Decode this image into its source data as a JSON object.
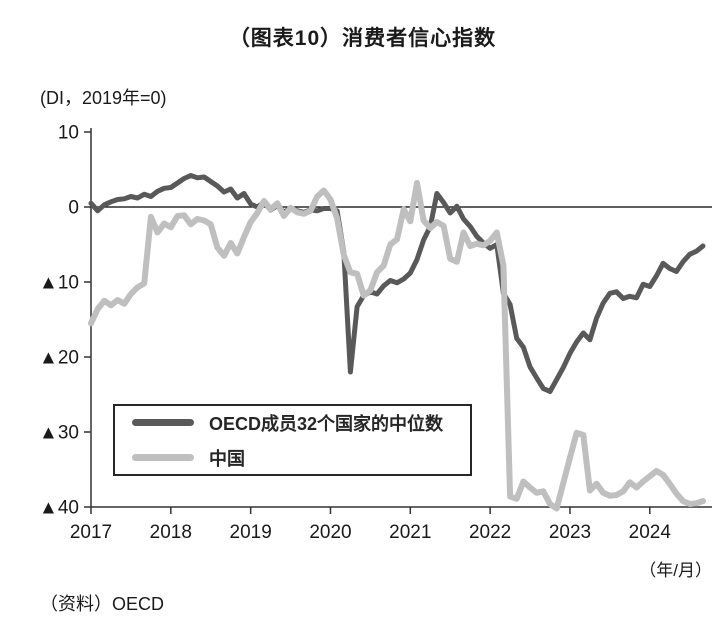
{
  "title": "（图表10）消费者信心指数",
  "unit_note": "(DI，2019年=0)",
  "x_unit_label": "（年/月）",
  "source": "（资料）OECD",
  "colors": {
    "oecd_line": "#595959",
    "china_line": "#bfbfbf",
    "axis": "#333333",
    "zero_line": "#000000",
    "text": "#1a1a1a",
    "legend_border": "#262626",
    "background": "#ffffff"
  },
  "chart_data": {
    "type": "line",
    "title": "（图表10）消费者信心指数",
    "unit_note": "(DI，2019年=0)",
    "xlabel": "（年/月）",
    "x_start": "2017-01",
    "x_end": "2024-09",
    "x_frequency": "monthly",
    "x_tick_labels": [
      "2017",
      "2018",
      "2019",
      "2020",
      "2021",
      "2022",
      "2023",
      "2024"
    ],
    "y_ticks": [
      {
        "value": 10,
        "label": "10"
      },
      {
        "value": 0,
        "label": "0"
      },
      {
        "value": -10,
        "label": "▲10"
      },
      {
        "value": -20,
        "label": "▲20"
      },
      {
        "value": -30,
        "label": "▲30"
      },
      {
        "value": -40,
        "label": "▲40"
      }
    ],
    "ylim": [
      -40,
      10
    ],
    "zero_line": true,
    "grid": false,
    "legend_position": "inside-bottom-left",
    "series": [
      {
        "name": "OECD成员32个国家的中位数",
        "color": "#595959",
        "stroke_width": 5,
        "values": [
          0.5,
          -0.5,
          0.3,
          0.7,
          1.0,
          1.1,
          1.4,
          1.2,
          1.7,
          1.4,
          2.1,
          2.5,
          2.6,
          3.2,
          3.8,
          4.2,
          3.9,
          4.0,
          3.4,
          2.8,
          2.0,
          2.4,
          1.2,
          1.8,
          0.4,
          0.0,
          0.6,
          -0.4,
          0.2,
          -0.7,
          -0.1,
          -0.5,
          -0.7,
          -0.4,
          -0.5,
          -0.2,
          -0.2,
          -0.5,
          -6.0,
          -22.0,
          -13.3,
          -11.8,
          -11.3,
          -11.6,
          -10.5,
          -9.8,
          -10.1,
          -9.6,
          -8.8,
          -7.0,
          -4.4,
          -2.6,
          1.8,
          0.6,
          -0.8,
          0.1,
          -1.6,
          -2.6,
          -3.9,
          -4.8,
          -5.5,
          -5.0,
          -11.5,
          -13.0,
          -17.5,
          -18.7,
          -21.3,
          -22.8,
          -24.2,
          -24.6,
          -23.0,
          -21.4,
          -19.5,
          -18.0,
          -16.8,
          -17.7,
          -14.8,
          -12.8,
          -11.5,
          -11.3,
          -12.2,
          -11.9,
          -12.1,
          -10.3,
          -10.6,
          -9.2,
          -7.5,
          -8.2,
          -8.6,
          -7.3,
          -6.3,
          -5.9,
          -5.2
        ]
      },
      {
        "name": "中国",
        "color": "#bfbfbf",
        "stroke_width": 6,
        "values": [
          -15.5,
          -13.6,
          -12.5,
          -13.1,
          -12.4,
          -12.9,
          -11.6,
          -10.7,
          -10.2,
          -1.3,
          -3.4,
          -2.2,
          -2.7,
          -1.2,
          -1.1,
          -2.3,
          -1.6,
          -1.8,
          -2.3,
          -5.4,
          -6.5,
          -4.8,
          -6.2,
          -4.0,
          -2.0,
          -0.8,
          0.8,
          -0.3,
          0.5,
          -1.2,
          -0.1,
          -0.7,
          -0.9,
          -0.5,
          1.4,
          2.2,
          1.0,
          -1.5,
          -6.4,
          -8.7,
          -8.9,
          -11.8,
          -11.1,
          -8.7,
          -7.8,
          -5.0,
          -4.3,
          -0.3,
          -1.9,
          3.2,
          -1.8,
          -2.8,
          -2.0,
          -2.5,
          -6.9,
          -7.3,
          -3.4,
          -5.2,
          -4.9,
          -5.1,
          -4.5,
          -3.4,
          -7.8,
          -38.6,
          -38.9,
          -36.6,
          -37.4,
          -38.1,
          -37.9,
          -39.6,
          -40.2,
          -36.8,
          -33.4,
          -30.1,
          -30.4,
          -37.8,
          -36.9,
          -38.1,
          -38.5,
          -38.4,
          -37.9,
          -36.7,
          -37.4,
          -36.6,
          -35.9,
          -35.2,
          -35.7,
          -36.9,
          -38.2,
          -39.2,
          -39.6,
          -39.5,
          -39.2
        ]
      }
    ]
  }
}
